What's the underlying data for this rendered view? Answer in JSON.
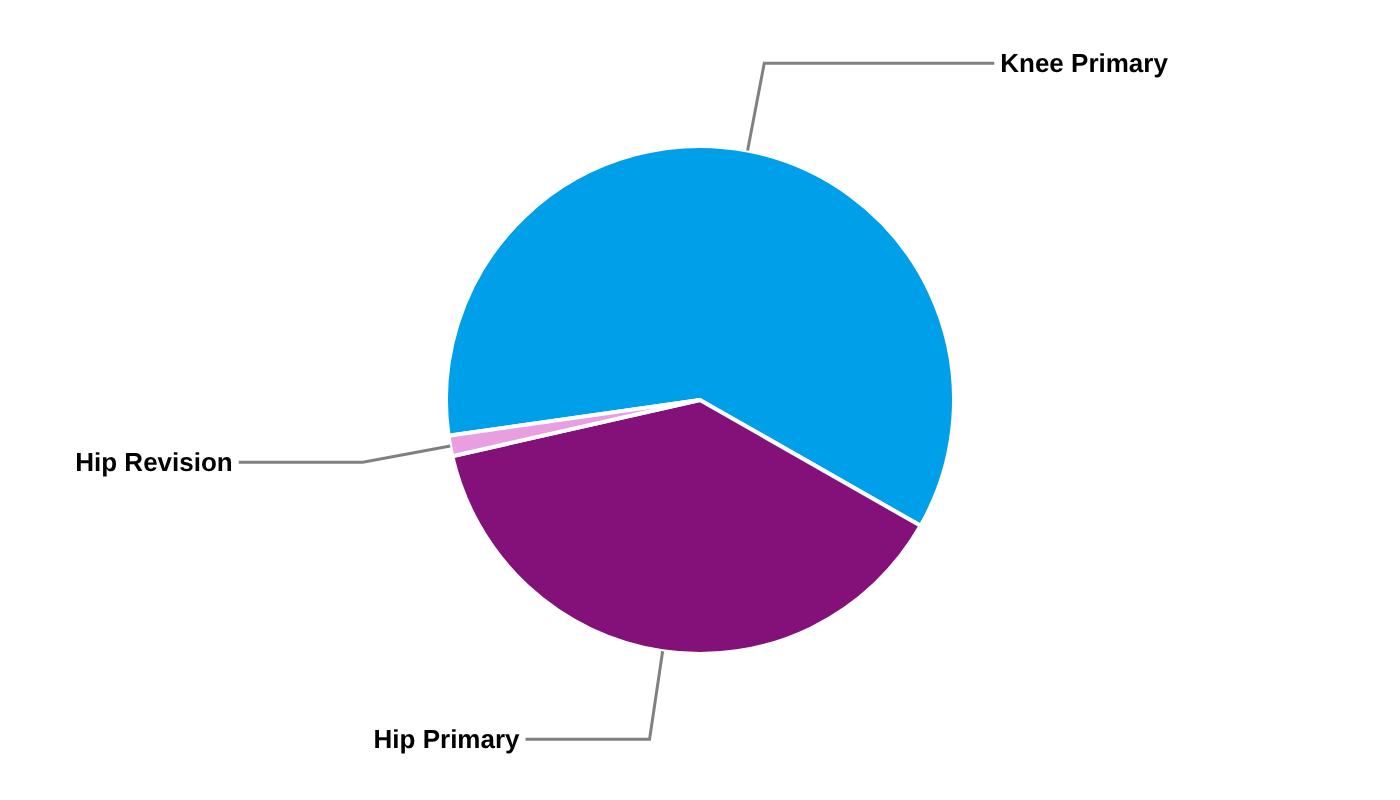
{
  "chart_data": {
    "type": "pie",
    "categories": [
      "Knee Primary",
      "Hip Primary",
      "Hip Revision"
    ],
    "values": [
      60.5,
      38.2,
      1.3
    ],
    "colors": [
      "#009fea",
      "#84107a",
      "#e89ee0"
    ]
  }
}
